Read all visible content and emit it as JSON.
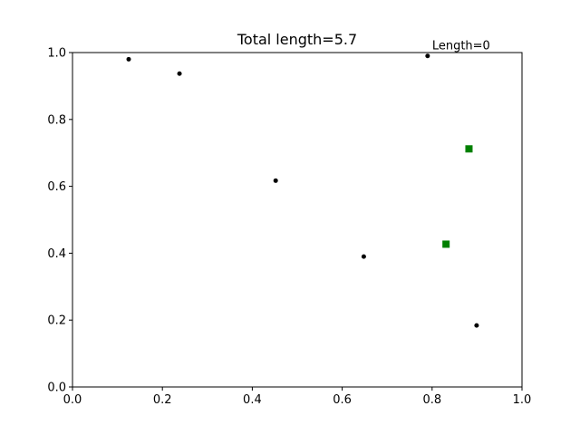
{
  "chart_data": {
    "type": "scatter",
    "title": "Total length=5.7",
    "xlabel": "",
    "ylabel": "",
    "xlim": [
      0.0,
      1.0
    ],
    "ylim": [
      0.0,
      1.0
    ],
    "grid": false,
    "xticks": [
      "0.0",
      "0.2",
      "0.4",
      "0.6",
      "0.8",
      "1.0"
    ],
    "yticks": [
      "0.0",
      "0.2",
      "0.4",
      "0.6",
      "0.8",
      "1.0"
    ],
    "series": [
      {
        "marker": "circle",
        "color": "#000000",
        "points": [
          {
            "x": 0.125,
            "y": 0.98
          },
          {
            "x": 0.238,
            "y": 0.937
          },
          {
            "x": 0.452,
            "y": 0.617
          },
          {
            "x": 0.648,
            "y": 0.39
          },
          {
            "x": 0.79,
            "y": 0.99
          },
          {
            "x": 0.899,
            "y": 0.184
          }
        ]
      },
      {
        "marker": "square",
        "color": "#008000",
        "points": [
          {
            "x": 0.882,
            "y": 0.712
          },
          {
            "x": 0.831,
            "y": 0.427
          }
        ]
      }
    ],
    "annotations": [
      {
        "text": "Length=0",
        "x": 0.79,
        "y": 0.99
      }
    ]
  }
}
